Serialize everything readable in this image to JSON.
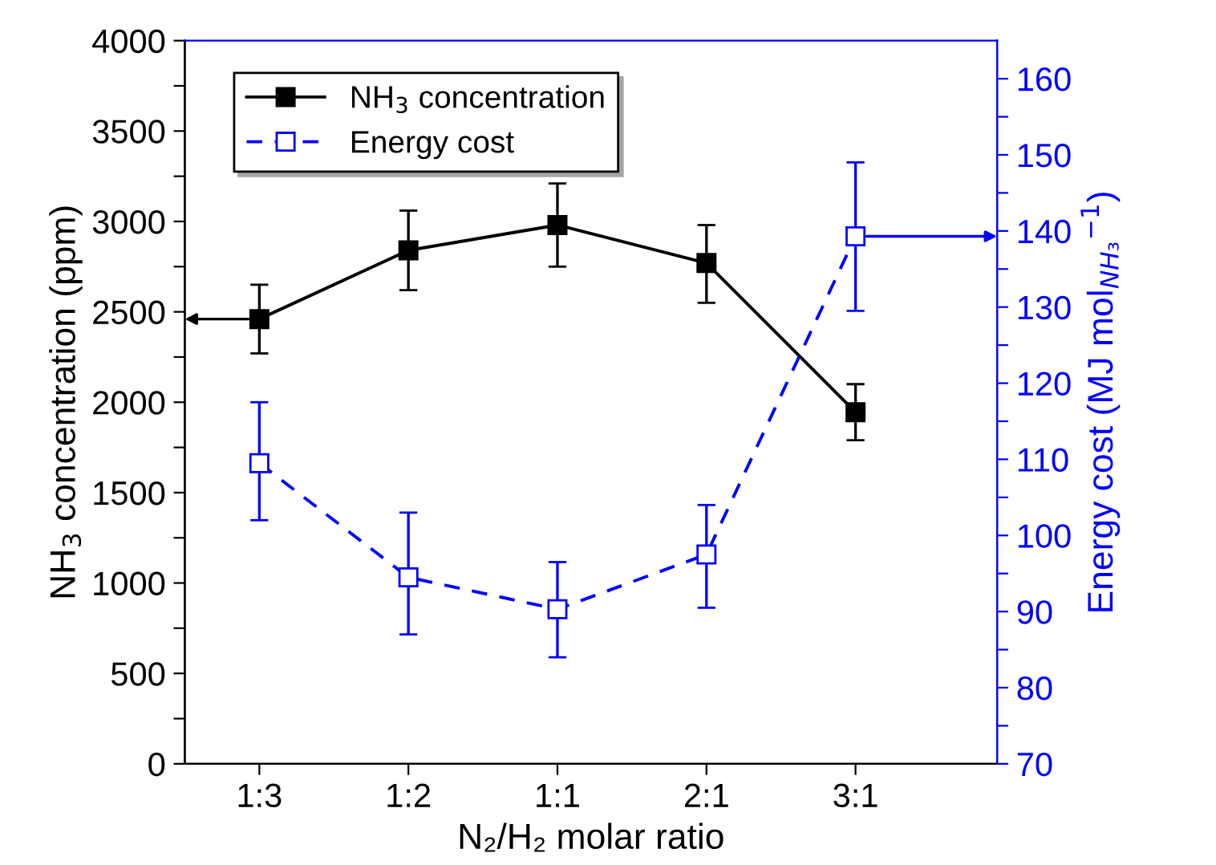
{
  "chart_data": {
    "type": "line",
    "categories": [
      "1:3",
      "1:2",
      "1:1",
      "2:1",
      "3:1"
    ],
    "xlabel": "N₂/H₂ molar ratio",
    "ylabel": "NH$_{3}$ concentration (ppm)",
    "y2label": "Energy cost (MJ mol$_{NH₃}$$^{−1}$)",
    "series": [
      {
        "name": "NH$_{3}$ concentration",
        "color": "#000000",
        "marker": "square",
        "line_style": "solid",
        "values": [
          2460,
          2840,
          2980,
          2770,
          1945
        ],
        "errors": [
          [
            2270,
            2650
          ],
          [
            2620,
            3060
          ],
          [
            2750,
            3210
          ],
          [
            2550,
            2980
          ],
          [
            1790,
            2100
          ]
        ]
      },
      {
        "name": "Energy cost",
        "color": "#0000ff",
        "marker": "square",
        "line_style": "dashed",
        "axis": "y2",
        "values": [
          109.5,
          94.5,
          90.3,
          97.5,
          139.3
        ],
        "errors": [
          [
            102,
            117.5
          ],
          [
            87,
            103
          ],
          [
            84,
            96.5
          ],
          [
            90.5,
            104
          ],
          [
            129.5,
            149
          ]
        ]
      }
    ],
    "ylim": [
      0,
      4000
    ],
    "yticks": [
      0,
      {
        "value": 250,
        "label": null
      },
      500,
      {
        "value": 750,
        "label": null
      },
      1000,
      {
        "value": 1250,
        "label": null
      },
      1500,
      {
        "value": 1750,
        "label": null
      },
      2000,
      {
        "value": 2250,
        "label": null
      },
      2500,
      {
        "value": 2750,
        "label": null
      },
      3000,
      {
        "value": 3250,
        "label": null
      },
      3500,
      {
        "value": 3750,
        "label": null
      },
      4000
    ],
    "y2lim": [
      70,
      165
    ],
    "y2ticks": [
      70,
      {
        "value": 75,
        "label": null
      },
      80,
      {
        "value": 85,
        "label": null
      },
      90,
      {
        "value": 95,
        "label": null
      },
      100,
      {
        "value": 105,
        "label": null
      },
      110,
      {
        "value": 115,
        "label": null
      },
      120,
      {
        "value": 125,
        "label": null
      },
      130,
      {
        "value": 135,
        "label": null
      },
      140,
      {
        "value": 145,
        "label": null
      },
      150,
      {
        "value": 155,
        "label": null
      },
      160
    ],
    "legend": "top left",
    "grid": false
  }
}
